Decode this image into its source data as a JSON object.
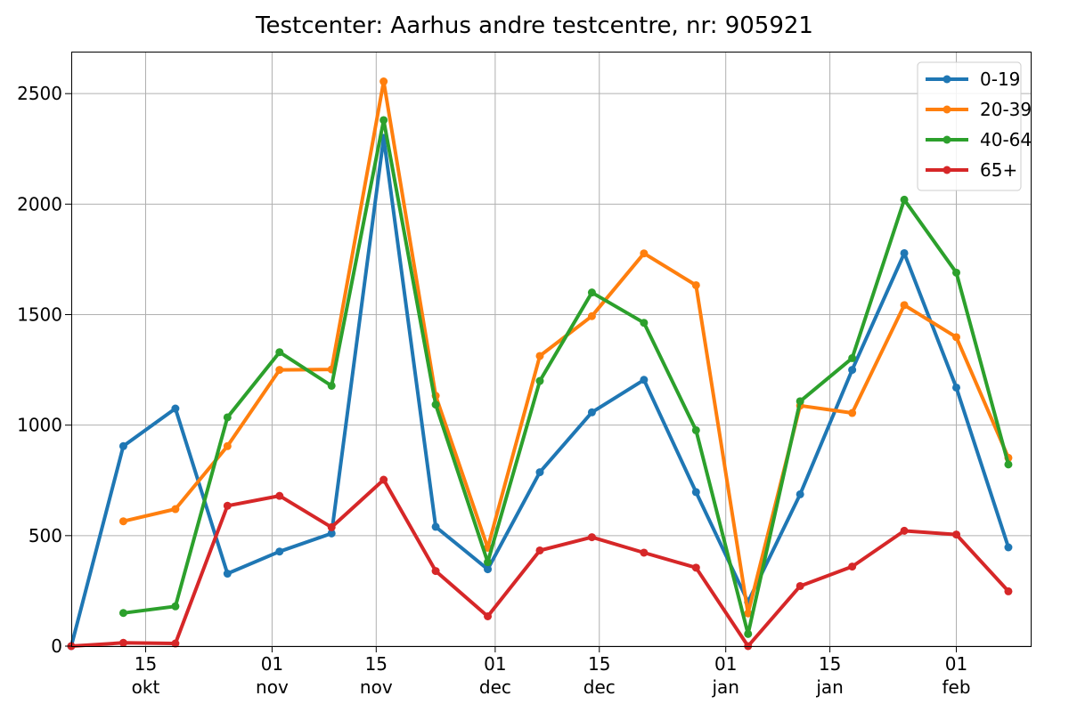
{
  "chart_data": {
    "type": "line",
    "title": "Testcenter: Aarhus andre testcentre, nr: 905921",
    "xlabel": "",
    "ylabel": "",
    "x_dates": [
      "2020-10-05",
      "2020-10-12",
      "2020-10-19",
      "2020-10-26",
      "2020-11-02",
      "2020-11-09",
      "2020-11-16",
      "2020-11-23",
      "2020-11-30",
      "2020-12-07",
      "2020-12-14",
      "2020-12-21",
      "2020-12-28",
      "2021-01-04",
      "2021-01-11",
      "2021-01-18",
      "2021-01-25",
      "2021-02-01",
      "2021-02-08"
    ],
    "xlim": [
      "2020-10-05",
      "2021-02-11"
    ],
    "ylim": [
      0,
      2690
    ],
    "yticks": [
      0,
      500,
      1000,
      1500,
      2000,
      2500
    ],
    "xticks": [
      {
        "date": "2020-10-15",
        "day": "15",
        "month": "okt"
      },
      {
        "date": "2020-11-01",
        "day": "01",
        "month": "nov"
      },
      {
        "date": "2020-11-15",
        "day": "15",
        "month": "nov"
      },
      {
        "date": "2020-12-01",
        "day": "01",
        "month": "dec"
      },
      {
        "date": "2020-12-15",
        "day": "15",
        "month": "dec"
      },
      {
        "date": "2021-01-01",
        "day": "01",
        "month": "jan"
      },
      {
        "date": "2021-01-15",
        "day": "15",
        "month": "jan"
      },
      {
        "date": "2021-02-01",
        "day": "01",
        "month": "feb"
      }
    ],
    "grid": true,
    "legend_position": "top-right",
    "series": [
      {
        "name": "0-19",
        "color": "#1f77b4",
        "values": [
          0,
          905,
          1075,
          328,
          428,
          510,
          2300,
          540,
          348,
          787,
          1058,
          1205,
          697,
          200,
          687,
          1250,
          1778,
          1170,
          447
        ]
      },
      {
        "name": "20-39",
        "color": "#ff7f0e",
        "values": [
          null,
          565,
          620,
          905,
          1250,
          1252,
          2555,
          1133,
          445,
          1313,
          1493,
          1777,
          1633,
          148,
          1088,
          1055,
          1543,
          1398,
          852
        ]
      },
      {
        "name": "40-64",
        "color": "#2ca02c",
        "values": [
          null,
          150,
          180,
          1035,
          1330,
          1178,
          2380,
          1093,
          380,
          1200,
          1600,
          1463,
          977,
          55,
          1108,
          1303,
          2020,
          1690,
          822
        ]
      },
      {
        "name": "65+",
        "color": "#d62728",
        "values": [
          0,
          15,
          12,
          635,
          680,
          538,
          753,
          340,
          135,
          433,
          493,
          423,
          355,
          0,
          272,
          360,
          522,
          505,
          248
        ]
      }
    ]
  }
}
